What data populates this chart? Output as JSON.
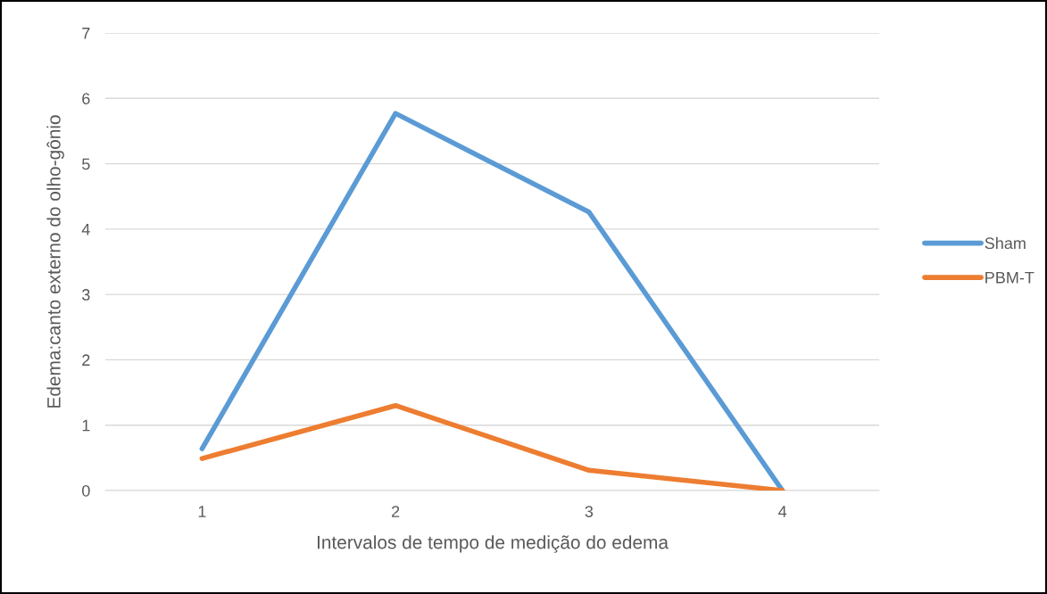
{
  "chart_data": {
    "type": "line",
    "xlabel": "Intervalos de tempo de medição do edema",
    "ylabel": "Edema:canto externo do olho-gônio",
    "categories": [
      "1",
      "2",
      "3",
      "4"
    ],
    "series": [
      {
        "name": "Sham",
        "color": "#5b9bd5",
        "values": [
          0.64,
          5.77,
          4.26,
          0
        ]
      },
      {
        "name": "PBM-T",
        "color": "#ed7d31",
        "values": [
          0.49,
          1.3,
          0.31,
          0
        ]
      }
    ],
    "ylim": [
      0,
      7
    ],
    "yticks": [
      0,
      1,
      2,
      3,
      4,
      5,
      6,
      7
    ],
    "grid": "y",
    "legend": "right",
    "marker": "none",
    "line_style": "solid"
  }
}
